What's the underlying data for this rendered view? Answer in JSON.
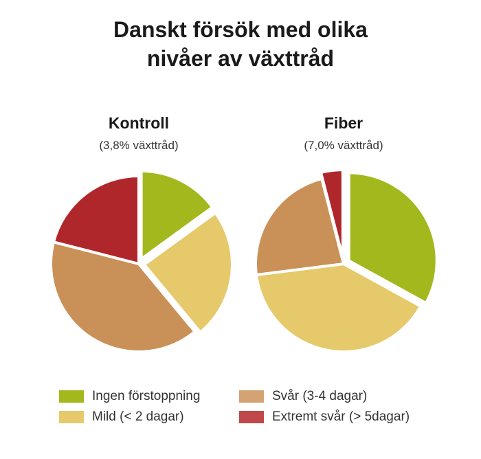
{
  "title_line1": "Danskt försök med olika",
  "title_line2": "nivåer av växttråd",
  "legend": [
    {
      "label": "Ingen förstoppning",
      "color": "#a3b81c"
    },
    {
      "label": "Mild (< 2 dagar)",
      "color": "#e6c96a"
    },
    {
      "label": "Svår (3-4 dagar)",
      "color": "#c99158"
    },
    {
      "label": "Extremt svår (> 5dagar)",
      "color": "#b0272b"
    }
  ],
  "chart_data": [
    {
      "type": "pie",
      "title": "Kontroll",
      "subtitle": "(3,8% växttråd)",
      "categories": [
        "Ingen förstoppning",
        "Mild (< 2 dagar)",
        "Svår (3-4 dagar)",
        "Extremt svår (> 5dagar)"
      ],
      "values": [
        15,
        24,
        40,
        21
      ],
      "exploded": [
        "Ingen förstoppning",
        "Mild (< 2 dagar)"
      ]
    },
    {
      "type": "pie",
      "title": "Fiber",
      "subtitle": "(7,0% växttråd)",
      "categories": [
        "Ingen förstoppning",
        "Mild (< 2 dagar)",
        "Svår (3-4 dagar)",
        "Extremt svår (> 5dagar)"
      ],
      "values": [
        33,
        40,
        23,
        4
      ],
      "exploded": [
        "Ingen förstoppning",
        "Extremt svår (> 5dagar)"
      ]
    }
  ]
}
